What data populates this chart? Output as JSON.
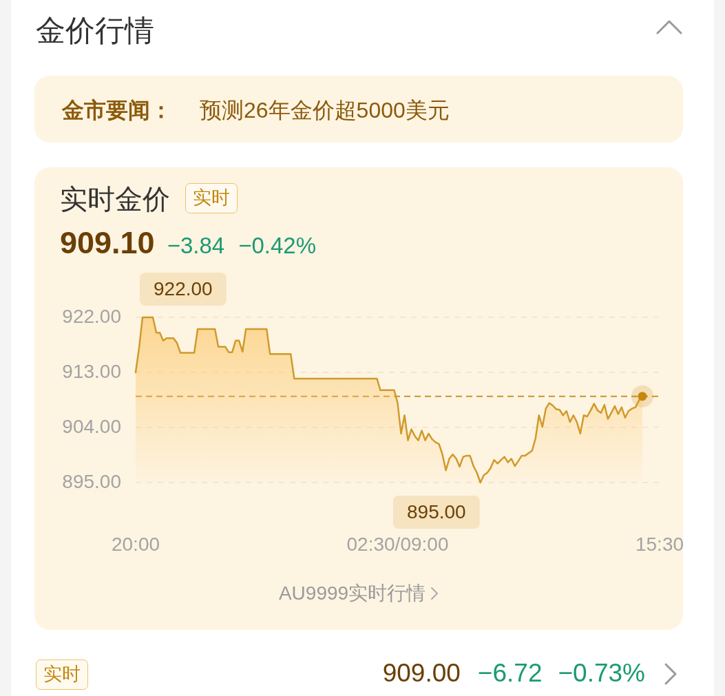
{
  "chart_data": {
    "type": "area",
    "title": "金价行情",
    "subtitle": "实时金价",
    "categories": [
      "20:00",
      null,
      null,
      null,
      null,
      null,
      null,
      null,
      null,
      null,
      null,
      null,
      null,
      null,
      null,
      null,
      null,
      null,
      null,
      null,
      null,
      null,
      null,
      null,
      null,
      null,
      null,
      null,
      null,
      null,
      null,
      null,
      null,
      null,
      null,
      null,
      null,
      null,
      null,
      null,
      null,
      null,
      null,
      null,
      null,
      null,
      null,
      null,
      null,
      null,
      null,
      null,
      null,
      null,
      null,
      null,
      null,
      null,
      null,
      null,
      null,
      null,
      null,
      null,
      null,
      null,
      null,
      null,
      null,
      null,
      null,
      null,
      null,
      null,
      null,
      null,
      "02:30/09:00",
      null,
      null,
      null,
      null,
      null,
      null,
      null,
      null,
      null,
      null,
      null,
      null,
      null,
      null,
      null,
      null,
      null,
      null,
      null,
      null,
      null,
      null,
      null,
      null,
      null,
      null,
      null,
      null,
      null,
      null,
      null,
      null,
      null,
      null,
      null,
      null,
      null,
      null,
      null,
      null,
      null,
      null,
      null,
      null,
      null,
      null,
      null,
      null,
      null,
      null,
      null,
      null,
      null,
      null,
      null,
      null,
      null,
      null,
      null,
      null,
      null,
      null,
      null,
      null,
      null,
      null,
      null,
      null,
      null,
      null,
      null,
      null,
      null,
      null,
      null,
      "15:30"
    ],
    "series": [
      {
        "color": "#d09a2a",
        "marker": "none",
        "values": [
          913,
          917,
          922,
          922,
          922,
          922,
          919.5,
          919.5,
          918.2,
          918.6,
          918.6,
          918.6,
          917.8,
          916.2,
          916.2,
          916.2,
          916.2,
          916.2,
          920.1,
          920.1,
          920.1,
          920.1,
          920.1,
          920.1,
          917.2,
          917.2,
          917.2,
          916.3,
          916.3,
          918.2,
          918.2,
          916.4,
          920.1,
          920.1,
          920.1,
          920.1,
          920.1,
          920.1,
          920.1,
          916,
          916,
          916,
          916,
          916,
          916,
          916,
          912,
          912,
          912,
          912,
          912,
          912,
          912,
          912,
          912,
          912,
          912,
          912,
          912,
          912,
          912,
          912,
          912,
          912,
          912,
          912,
          912,
          912,
          912,
          912,
          912,
          910.1,
          910.1,
          910.1,
          910.1,
          910.1,
          908,
          903,
          906,
          901.9,
          903.7,
          902.6,
          901.9,
          903.5,
          901.9,
          903,
          902.1,
          901.6,
          901.3,
          899.6,
          897,
          898.9,
          899.6,
          898.9,
          897.6,
          899.2,
          899.4,
          899.4,
          897.7,
          896.6,
          895,
          896.2,
          896.6,
          897.4,
          898.7,
          898.1,
          898.7,
          899.2,
          898.3,
          898.9,
          897.7,
          898.5,
          899.4,
          899.4,
          899.8,
          900.2,
          902.2,
          906,
          904.1,
          907.1,
          908,
          907.6,
          907,
          906.9,
          906,
          906.7,
          904.9,
          906,
          904.9,
          903,
          906,
          905.8,
          906.8,
          907.9,
          906.8,
          906.4,
          907.7,
          905.4,
          906.4,
          907.5,
          906.2,
          907.3,
          905.6,
          906.7,
          907.1,
          907.3,
          908.4,
          909.1,
          null,
          null,
          null,
          null,
          null
        ],
        "value_labels": [
          null,
          null,
          "922.00",
          null,
          null,
          null,
          null,
          null,
          null,
          null,
          null,
          null,
          null,
          null,
          null,
          null,
          null,
          null,
          null,
          null,
          null,
          null,
          null,
          null,
          null,
          null,
          null,
          null,
          null,
          null,
          null,
          null,
          null,
          null,
          null,
          null,
          null,
          null,
          null,
          null,
          null,
          null,
          null,
          null,
          null,
          null,
          null,
          null,
          null,
          null,
          null,
          null,
          null,
          null,
          null,
          null,
          null,
          null,
          null,
          null,
          null,
          null,
          null,
          null,
          null,
          null,
          null,
          null,
          null,
          null,
          null,
          null,
          null,
          null,
          null,
          null,
          null,
          null,
          null,
          null,
          null,
          null,
          null,
          null,
          null,
          null,
          null,
          null,
          null,
          null,
          null,
          null,
          null,
          null,
          null,
          null,
          null,
          null,
          null,
          null,
          "895.00",
          null,
          null,
          null,
          null,
          null,
          null,
          null,
          null,
          null,
          null,
          null,
          null,
          null,
          null,
          null,
          null,
          null,
          null,
          null,
          null,
          null,
          null,
          null,
          null,
          null,
          null,
          null,
          null,
          null,
          null,
          null,
          null,
          null,
          null,
          null,
          null,
          null,
          null,
          null,
          null,
          null,
          null,
          null,
          null,
          null,
          null,
          null,
          null,
          null,
          null,
          null,
          null
        ]
      },
      {
        "type": "scatter",
        "color": "#c8860c",
        "marker": "circle",
        "values": [
          null,
          null,
          null,
          null,
          null,
          null,
          null,
          null,
          null,
          null,
          null,
          null,
          null,
          null,
          null,
          null,
          null,
          null,
          null,
          null,
          null,
          null,
          null,
          null,
          null,
          null,
          null,
          null,
          null,
          null,
          null,
          null,
          null,
          null,
          null,
          null,
          null,
          null,
          null,
          null,
          null,
          null,
          null,
          null,
          null,
          null,
          null,
          null,
          null,
          null,
          null,
          null,
          null,
          null,
          null,
          null,
          null,
          null,
          null,
          null,
          null,
          null,
          null,
          null,
          null,
          null,
          null,
          null,
          null,
          null,
          null,
          null,
          null,
          null,
          null,
          null,
          null,
          null,
          null,
          null,
          null,
          null,
          null,
          null,
          null,
          null,
          null,
          null,
          null,
          null,
          null,
          null,
          null,
          null,
          null,
          null,
          null,
          null,
          null,
          null,
          null,
          null,
          null,
          null,
          null,
          null,
          null,
          null,
          null,
          null,
          null,
          null,
          null,
          null,
          null,
          null,
          null,
          null,
          null,
          null,
          null,
          null,
          null,
          null,
          null,
          null,
          null,
          null,
          null,
          null,
          null,
          null,
          null,
          null,
          null,
          null,
          null,
          null,
          null,
          null,
          null,
          null,
          null,
          null,
          null,
          null,
          null,
          909.1,
          null,
          null,
          null,
          null,
          null
        ]
      }
    ],
    "ylim": [
      895,
      922
    ],
    "yticks": [
      {
        "value": 895,
        "label": "895.00"
      },
      {
        "value": 904,
        "label": "904.00"
      },
      {
        "value": 913,
        "label": "913.00"
      },
      {
        "value": 922,
        "label": "922.00"
      }
    ],
    "grid": "y",
    "legend": false,
    "ref_lines": [
      {
        "axis": "y",
        "value": 909.1,
        "color": "#c9932f",
        "line_style": "dashed"
      }
    ],
    "annotations": [
      "金市要闻：",
      "预测26年金价超5000美元",
      "实时",
      "909.10",
      "−3.84",
      "−0.42%",
      "AU9999实时行情",
      "实时",
      "909.00",
      "−6.72",
      "−0.73%"
    ]
  }
}
